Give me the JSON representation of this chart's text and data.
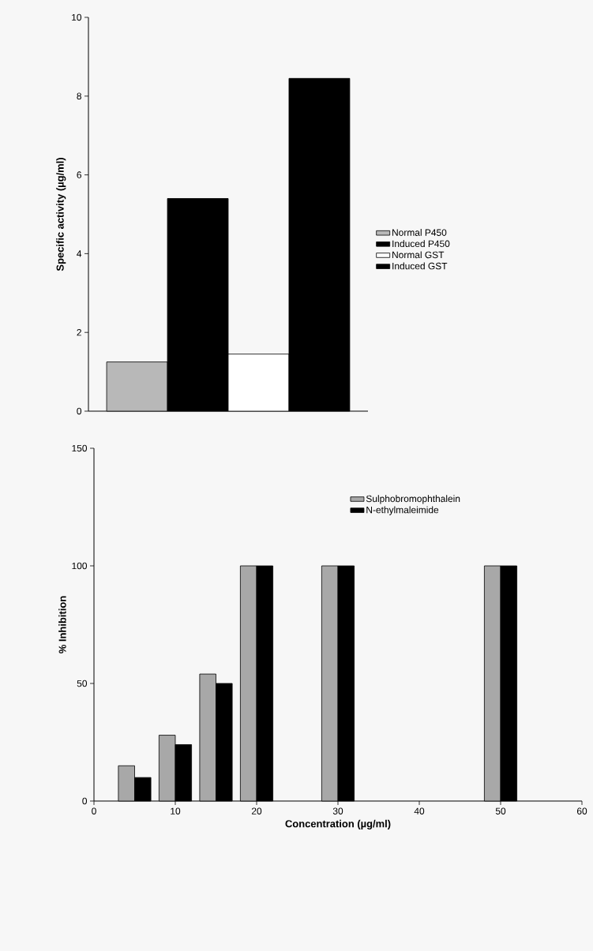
{
  "chart_data": [
    {
      "type": "bar",
      "ylabel": "Specific activity (µg/ml)",
      "categories": [
        null,
        null,
        null,
        null
      ],
      "ylim": [
        0,
        10
      ],
      "yticks": [
        0,
        2,
        4,
        6,
        8,
        10
      ],
      "legend": "right",
      "tick_labels": "y",
      "series": [
        {
          "name": "Normal P450",
          "color": "#b8b8b8",
          "values": [
            1.25,
            null,
            null,
            null
          ]
        },
        {
          "name": "Induced P450",
          "color": "#000000",
          "values": [
            null,
            5.4,
            null,
            null
          ]
        },
        {
          "name": "Normal GST",
          "color": "#ffffff",
          "values": [
            null,
            null,
            1.45,
            null
          ]
        },
        {
          "name": "Induced GST",
          "color": "#000000",
          "values": [
            null,
            null,
            null,
            8.45
          ]
        }
      ]
    },
    {
      "type": "bar",
      "xlabel": "Concentration (µg/ml)",
      "ylabel": "% Inhibition",
      "x": [
        5,
        10,
        15,
        20,
        30,
        50
      ],
      "xlim": [
        0,
        60
      ],
      "xticks": [
        0,
        10,
        20,
        30,
        40,
        50,
        60
      ],
      "ylim": [
        0,
        150
      ],
      "yticks": [
        0,
        50,
        100,
        150
      ],
      "legend": "top right",
      "series": [
        {
          "name": "Sulphobromophthalein",
          "color": "#a8a8a8",
          "values": [
            15,
            28,
            54,
            100,
            100,
            100
          ]
        },
        {
          "name": "N-ethylmaleimide",
          "color": "#000000",
          "values": [
            10,
            24,
            50,
            100,
            100,
            100
          ]
        }
      ]
    }
  ]
}
